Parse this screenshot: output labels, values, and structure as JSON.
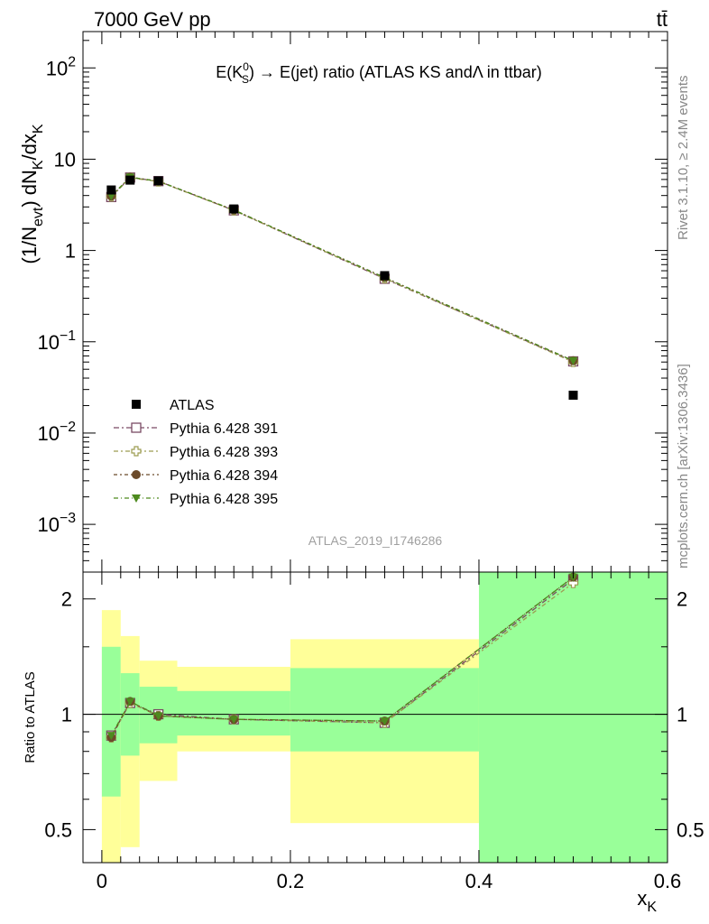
{
  "header": {
    "energy_label": "7000 GeV pp",
    "process_label": "tt̄"
  },
  "side_text": {
    "rivet": "Rivet 3.1.10, ≥ 2.4M events",
    "mcplots": "mcplots.cern.ch [arXiv:1306.3436]"
  },
  "analysis_id": "ATLAS_2019_I1746286",
  "colors": {
    "data": "#000000",
    "p391": "#7a4a64",
    "p393": "#9c9c52",
    "p394": "#6b4a2a",
    "p395": "#4d8a1e",
    "band_yellow": "#ffff99",
    "band_green": "#99ff99"
  },
  "chart_data": [
    {
      "type": "scatter",
      "title_parts": {
        "pre": "E(K",
        "sup": "0",
        "sub": "S",
        "post": ") → E(jet) ratio (ATLAS KS andΛ in ttbar)"
      },
      "ylabel": "(1/N_evt) dN_K/dx_K",
      "yscale": "log",
      "ylim": [
        0.0003,
        250
      ],
      "xlim": [
        -0.02,
        0.6
      ],
      "y_ticks": [
        {
          "v": 0.001,
          "base": "10",
          "exp": "−3"
        },
        {
          "v": 0.01,
          "base": "10",
          "exp": "−2"
        },
        {
          "v": 0.1,
          "base": "10",
          "exp": "−1"
        },
        {
          "v": 1,
          "base": "1",
          "exp": ""
        },
        {
          "v": 10,
          "base": "10",
          "exp": ""
        },
        {
          "v": 100,
          "base": "10",
          "exp": "2"
        }
      ],
      "legend": [
        {
          "key": "data",
          "label": "ATLAS"
        },
        {
          "key": "p391",
          "label": "Pythia 6.428 391"
        },
        {
          "key": "p393",
          "label": "Pythia 6.428 393"
        },
        {
          "key": "p394",
          "label": "Pythia 6.428 394"
        },
        {
          "key": "p395",
          "label": "Pythia 6.428 395"
        }
      ],
      "data_points": [
        {
          "x": 0.01,
          "y": 4.6
        },
        {
          "x": 0.03,
          "y": 5.9
        },
        {
          "x": 0.06,
          "y": 5.8
        },
        {
          "x": 0.14,
          "y": 2.85
        },
        {
          "x": 0.3,
          "y": 0.53
        },
        {
          "x": 0.5,
          "y": 0.026
        }
      ],
      "series": [
        {
          "key": "p391",
          "marker": "open-square",
          "x": [
            0.01,
            0.03,
            0.06,
            0.14,
            0.3,
            0.5
          ],
          "y": [
            3.85,
            6.3,
            5.75,
            2.75,
            0.49,
            0.061
          ]
        },
        {
          "key": "p393",
          "marker": "open-cross",
          "x": [
            0.01,
            0.03,
            0.06,
            0.14,
            0.3,
            0.5
          ],
          "y": [
            3.9,
            6.25,
            5.7,
            2.75,
            0.495,
            0.06
          ]
        },
        {
          "key": "p394",
          "marker": "filled-circle",
          "x": [
            0.01,
            0.03,
            0.06,
            0.14,
            0.3,
            0.5
          ],
          "y": [
            3.95,
            6.35,
            5.75,
            2.78,
            0.505,
            0.062
          ]
        },
        {
          "key": "p395",
          "marker": "filled-triangle-down",
          "x": [
            0.01,
            0.03,
            0.06,
            0.14,
            0.3,
            0.5
          ],
          "y": [
            3.95,
            6.35,
            5.75,
            2.78,
            0.505,
            0.062
          ]
        }
      ]
    },
    {
      "type": "line",
      "ylabel": "Ratio to ATLAS",
      "xlabel": "x_K",
      "yscale": "log",
      "ylim": [
        0.41,
        2.35
      ],
      "xlim": [
        -0.02,
        0.6
      ],
      "y_ticks": [
        0.5,
        1,
        2
      ],
      "x_ticks": [
        0,
        0.2,
        0.4,
        0.6
      ],
      "bands": [
        {
          "x0": 0.0,
          "x1": 0.02,
          "yellow": [
            0.3,
            1.87
          ],
          "green": [
            0.61,
            1.5
          ]
        },
        {
          "x0": 0.02,
          "x1": 0.04,
          "yellow": [
            0.45,
            1.6
          ],
          "green": [
            0.78,
            1.28
          ]
        },
        {
          "x0": 0.04,
          "x1": 0.08,
          "yellow": [
            0.67,
            1.38
          ],
          "green": [
            0.84,
            1.18
          ]
        },
        {
          "x0": 0.08,
          "x1": 0.2,
          "yellow": [
            0.8,
            1.33
          ],
          "green": [
            0.88,
            1.15
          ]
        },
        {
          "x0": 0.2,
          "x1": 0.4,
          "yellow": [
            0.52,
            1.57
          ],
          "green": [
            0.8,
            1.32
          ]
        },
        {
          "x0": 0.4,
          "x1": 0.6,
          "yellow": [
            0.35,
            2.6
          ],
          "green": [
            0.35,
            2.6
          ]
        }
      ],
      "series": [
        {
          "key": "p391",
          "marker": "open-square",
          "x": [
            0.01,
            0.03,
            0.06,
            0.14,
            0.3,
            0.5
          ],
          "y": [
            0.88,
            1.07,
            1.0,
            0.97,
            0.95,
            2.25
          ]
        },
        {
          "key": "p393",
          "marker": "open-cross",
          "x": [
            0.01,
            0.03,
            0.06,
            0.14,
            0.3,
            0.5
          ],
          "y": [
            0.87,
            1.07,
            0.99,
            0.97,
            0.95,
            2.2
          ]
        },
        {
          "key": "p394",
          "marker": "filled-circle",
          "x": [
            0.01,
            0.03,
            0.06,
            0.14,
            0.3,
            0.5
          ],
          "y": [
            0.87,
            1.08,
            0.99,
            0.97,
            0.96,
            2.28
          ]
        },
        {
          "key": "p395",
          "marker": "filled-triangle-down",
          "x": [
            0.01,
            0.03,
            0.06,
            0.14,
            0.3,
            0.5
          ],
          "y": [
            0.88,
            1.08,
            0.99,
            0.97,
            0.96,
            2.28
          ]
        }
      ]
    }
  ]
}
